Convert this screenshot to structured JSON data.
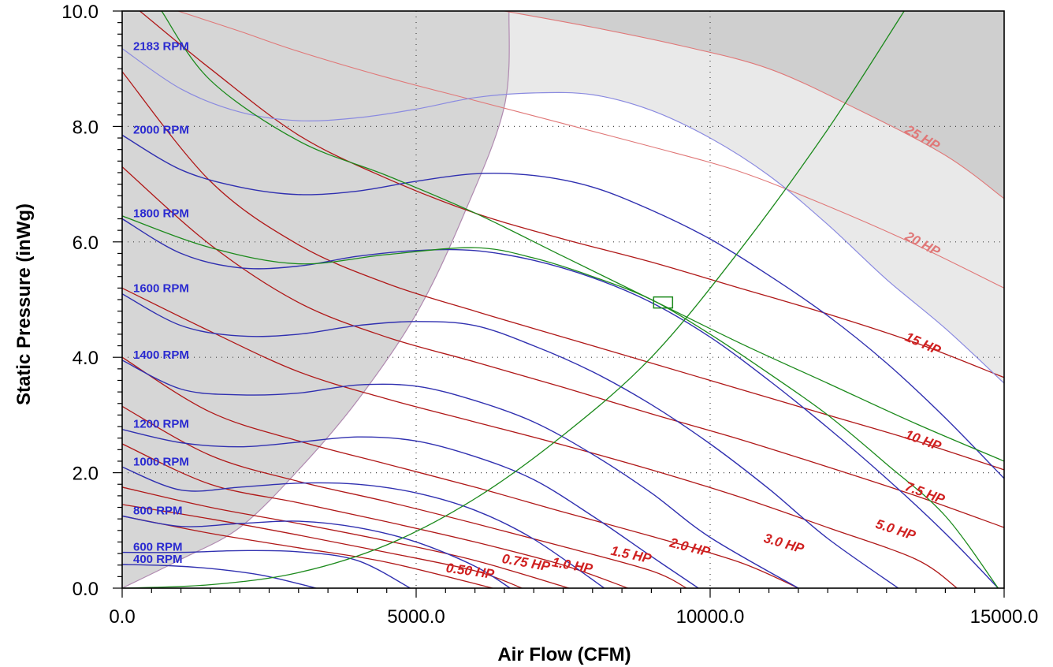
{
  "chart_data": {
    "type": "line",
    "title": "",
    "xlabel": "Air Flow (CFM)",
    "ylabel": "Static Pressure (inWg)",
    "xlim": [
      0,
      15000
    ],
    "ylim": [
      0,
      10
    ],
    "grid": true,
    "x_ticks": [
      {
        "value": 0,
        "label": "0.0"
      },
      {
        "value": 5000,
        "label": "5000.0"
      },
      {
        "value": 10000,
        "label": "10000.0"
      },
      {
        "value": 15000,
        "label": "15000.0"
      }
    ],
    "y_ticks": [
      {
        "value": 0,
        "label": "0.0"
      },
      {
        "value": 2,
        "label": "2.0"
      },
      {
        "value": 4,
        "label": "4.0"
      },
      {
        "value": 6,
        "label": "6.0"
      },
      {
        "value": 8,
        "label": "8.0"
      },
      {
        "value": 10,
        "label": "10.0"
      }
    ],
    "colors": {
      "rpm": "#3030b0",
      "rpm_max": "#8a8ae0",
      "hp": "#b01818",
      "hp_faint": "#e07878",
      "system": "#1c8a1c",
      "surge_region": "#d6d6d6",
      "over_limit_region": "#e9e9e9",
      "hp_limit_region": "#cfcfcf",
      "grid": "#444444"
    },
    "operating_point": {
      "x": 9200,
      "y": 4.95
    },
    "rpm_curves": [
      {
        "label": "400 RPM",
        "points": [
          [
            0,
            0.41
          ],
          [
            800,
            0.39
          ],
          [
            1600,
            0.33
          ],
          [
            2400,
            0.22
          ],
          [
            3300,
            0.0
          ]
        ]
      },
      {
        "label": "600 RPM",
        "points": [
          [
            0,
            0.62
          ],
          [
            1000,
            0.62
          ],
          [
            2000,
            0.65
          ],
          [
            3000,
            0.63
          ],
          [
            4000,
            0.48
          ],
          [
            4900,
            0.0
          ]
        ]
      },
      {
        "label": "800 RPM",
        "points": [
          [
            0,
            1.25
          ],
          [
            1000,
            1.07
          ],
          [
            2000,
            1.12
          ],
          [
            3000,
            1.16
          ],
          [
            4000,
            1.05
          ],
          [
            5000,
            0.8
          ],
          [
            6000,
            0.38
          ],
          [
            6600,
            0.0
          ]
        ]
      },
      {
        "label": "1000 RPM",
        "points": [
          [
            0,
            2.1
          ],
          [
            1000,
            1.7
          ],
          [
            2000,
            1.75
          ],
          [
            3000,
            1.82
          ],
          [
            4000,
            1.8
          ],
          [
            5000,
            1.65
          ],
          [
            6000,
            1.35
          ],
          [
            7000,
            0.85
          ],
          [
            8200,
            0.0
          ]
        ]
      },
      {
        "label": "1200 RPM",
        "points": [
          [
            0,
            2.75
          ],
          [
            1000,
            2.52
          ],
          [
            2000,
            2.45
          ],
          [
            3000,
            2.53
          ],
          [
            4000,
            2.62
          ],
          [
            5000,
            2.55
          ],
          [
            6000,
            2.28
          ],
          [
            7000,
            1.88
          ],
          [
            8000,
            1.25
          ],
          [
            9000,
            0.55
          ],
          [
            9800,
            0.0
          ]
        ]
      },
      {
        "label": "1400 RPM",
        "points": [
          [
            0,
            3.95
          ],
          [
            1000,
            3.45
          ],
          [
            2000,
            3.35
          ],
          [
            3000,
            3.38
          ],
          [
            4000,
            3.52
          ],
          [
            5000,
            3.5
          ],
          [
            6000,
            3.25
          ],
          [
            7000,
            2.88
          ],
          [
            8000,
            2.32
          ],
          [
            9000,
            1.65
          ],
          [
            10000,
            0.88
          ],
          [
            11500,
            0.0
          ]
        ]
      },
      {
        "label": "1600 RPM",
        "points": [
          [
            0,
            5.1
          ],
          [
            1000,
            4.55
          ],
          [
            2000,
            4.37
          ],
          [
            3000,
            4.4
          ],
          [
            4000,
            4.55
          ],
          [
            5000,
            4.62
          ],
          [
            6000,
            4.55
          ],
          [
            7000,
            4.2
          ],
          [
            8000,
            3.75
          ],
          [
            9000,
            3.18
          ],
          [
            10000,
            2.5
          ],
          [
            11000,
            1.72
          ],
          [
            12000,
            0.86
          ],
          [
            13200,
            0.0
          ]
        ]
      },
      {
        "label": "1800 RPM",
        "points": [
          [
            0,
            6.4
          ],
          [
            1000,
            5.8
          ],
          [
            2000,
            5.55
          ],
          [
            3000,
            5.58
          ],
          [
            4000,
            5.75
          ],
          [
            5000,
            5.85
          ],
          [
            6000,
            5.85
          ],
          [
            7000,
            5.68
          ],
          [
            8000,
            5.38
          ],
          [
            9000,
            4.95
          ],
          [
            10000,
            4.35
          ],
          [
            11000,
            3.6
          ],
          [
            12000,
            2.78
          ],
          [
            13000,
            1.9
          ],
          [
            14000,
            0.95
          ],
          [
            14900,
            0.0
          ]
        ]
      },
      {
        "label": "2000 RPM",
        "points": [
          [
            0,
            7.85
          ],
          [
            1000,
            7.25
          ],
          [
            2000,
            6.95
          ],
          [
            3000,
            6.82
          ],
          [
            4000,
            6.88
          ],
          [
            5000,
            7.05
          ],
          [
            6000,
            7.18
          ],
          [
            7000,
            7.15
          ],
          [
            8000,
            6.95
          ],
          [
            9000,
            6.55
          ],
          [
            10000,
            6.05
          ],
          [
            11000,
            5.42
          ],
          [
            12000,
            4.72
          ],
          [
            13000,
            3.9
          ],
          [
            14000,
            2.95
          ],
          [
            15000,
            1.9
          ]
        ]
      },
      {
        "label": "2183 RPM",
        "points": [
          [
            0,
            9.35
          ],
          [
            1000,
            8.65
          ],
          [
            2000,
            8.25
          ],
          [
            3000,
            8.1
          ],
          [
            4000,
            8.15
          ],
          [
            5000,
            8.3
          ],
          [
            6000,
            8.5
          ],
          [
            7000,
            8.58
          ],
          [
            8000,
            8.55
          ],
          [
            9000,
            8.28
          ],
          [
            10000,
            7.8
          ],
          [
            11000,
            7.15
          ],
          [
            12000,
            6.3
          ],
          [
            13000,
            5.35
          ],
          [
            14000,
            4.5
          ],
          [
            15000,
            3.55
          ]
        ],
        "max": true
      }
    ],
    "hp_curves": [
      {
        "label": "0.50 HP",
        "points": [
          [
            0,
            1.25
          ],
          [
            1500,
            0.95
          ],
          [
            3000,
            0.7
          ],
          [
            4500,
            0.45
          ],
          [
            6300,
            0.0
          ]
        ]
      },
      {
        "label": "0.75 HP",
        "points": [
          [
            0,
            1.45
          ],
          [
            1500,
            1.2
          ],
          [
            3000,
            0.92
          ],
          [
            4500,
            0.62
          ],
          [
            6000,
            0.3
          ],
          [
            6800,
            0.0
          ]
        ]
      },
      {
        "label": "1.0 HP",
        "points": [
          [
            0,
            1.75
          ],
          [
            1500,
            1.4
          ],
          [
            3000,
            1.12
          ],
          [
            4500,
            0.82
          ],
          [
            6000,
            0.48
          ],
          [
            7600,
            0.0
          ]
        ]
      },
      {
        "label": "1.5 HP",
        "points": [
          [
            0,
            2.5
          ],
          [
            1500,
            1.8
          ],
          [
            3000,
            1.48
          ],
          [
            4500,
            1.15
          ],
          [
            6000,
            0.8
          ],
          [
            7500,
            0.4
          ],
          [
            8600,
            0.0
          ]
        ]
      },
      {
        "label": "2.0 HP",
        "points": [
          [
            0,
            3.15
          ],
          [
            1500,
            2.3
          ],
          [
            3000,
            1.85
          ],
          [
            4500,
            1.5
          ],
          [
            6000,
            1.12
          ],
          [
            7500,
            0.72
          ],
          [
            9000,
            0.3
          ],
          [
            9600,
            0.0
          ]
        ]
      },
      {
        "label": "3.0 HP",
        "points": [
          [
            0,
            4.0
          ],
          [
            1500,
            3.05
          ],
          [
            3000,
            2.55
          ],
          [
            4500,
            2.15
          ],
          [
            6000,
            1.75
          ],
          [
            7500,
            1.32
          ],
          [
            9000,
            0.9
          ],
          [
            10500,
            0.45
          ],
          [
            11500,
            0.0
          ]
        ]
      },
      {
        "label": "5.0 HP",
        "points": [
          [
            0,
            5.2
          ],
          [
            1500,
            4.45
          ],
          [
            3000,
            3.75
          ],
          [
            4500,
            3.28
          ],
          [
            6000,
            2.88
          ],
          [
            7500,
            2.48
          ],
          [
            9000,
            2.05
          ],
          [
            10500,
            1.58
          ],
          [
            12000,
            1.05
          ],
          [
            13500,
            0.5
          ],
          [
            14200,
            0.0
          ]
        ]
      },
      {
        "label": "7.5 HP",
        "points": [
          [
            0,
            7.3
          ],
          [
            1500,
            5.95
          ],
          [
            3000,
            4.95
          ],
          [
            4500,
            4.35
          ],
          [
            6000,
            3.92
          ],
          [
            7500,
            3.48
          ],
          [
            9000,
            3.02
          ],
          [
            10500,
            2.58
          ],
          [
            12000,
            2.1
          ],
          [
            13500,
            1.6
          ],
          [
            15000,
            1.05
          ]
        ]
      },
      {
        "label": "10 HP",
        "points": [
          [
            0,
            8.95
          ],
          [
            1500,
            7.05
          ],
          [
            3000,
            5.95
          ],
          [
            4500,
            5.28
          ],
          [
            6000,
            4.8
          ],
          [
            7500,
            4.35
          ],
          [
            9000,
            3.9
          ],
          [
            10500,
            3.45
          ],
          [
            12000,
            3.0
          ],
          [
            13500,
            2.55
          ],
          [
            15000,
            2.05
          ]
        ]
      },
      {
        "label": "15 HP",
        "points": [
          [
            300,
            10.0
          ],
          [
            1500,
            9.0
          ],
          [
            3000,
            7.85
          ],
          [
            4500,
            7.1
          ],
          [
            6000,
            6.5
          ],
          [
            7500,
            6.05
          ],
          [
            9000,
            5.65
          ],
          [
            10500,
            5.2
          ],
          [
            12000,
            4.75
          ],
          [
            13500,
            4.25
          ],
          [
            15000,
            3.65
          ]
        ]
      },
      {
        "label": "20 HP",
        "points": [
          [
            950,
            10.0
          ],
          [
            2000,
            9.65
          ],
          [
            3000,
            9.3
          ],
          [
            4500,
            8.85
          ],
          [
            6000,
            8.45
          ],
          [
            7500,
            8.05
          ],
          [
            9000,
            7.65
          ],
          [
            10500,
            7.22
          ],
          [
            12000,
            6.62
          ],
          [
            13500,
            5.95
          ],
          [
            15000,
            5.2
          ]
        ],
        "faint": true
      },
      {
        "label": "25 HP",
        "points": [
          [
            6500,
            10.0
          ],
          [
            8000,
            9.72
          ],
          [
            9500,
            9.4
          ],
          [
            11000,
            9.0
          ],
          [
            12500,
            8.3
          ],
          [
            14000,
            7.5
          ],
          [
            15000,
            6.75
          ]
        ],
        "faint": true
      }
    ],
    "hp_label_positions": [
      {
        "label": "0.50 HP",
        "x": 5500,
        "y": 0.28,
        "angle": 8
      },
      {
        "label": "0.75 HP",
        "x": 6450,
        "y": 0.44,
        "angle": 10
      },
      {
        "label": "1.0 HP",
        "x": 7300,
        "y": 0.38,
        "angle": 10
      },
      {
        "label": "1.5 HP",
        "x": 8300,
        "y": 0.58,
        "angle": 12
      },
      {
        "label": "2.0 HP",
        "x": 9300,
        "y": 0.72,
        "angle": 14
      },
      {
        "label": "3.0 HP",
        "x": 10900,
        "y": 0.8,
        "angle": 16
      },
      {
        "label": "5.0 HP",
        "x": 12800,
        "y": 1.05,
        "angle": 18
      },
      {
        "label": "7.5 HP",
        "x": 13300,
        "y": 1.7,
        "angle": 20
      },
      {
        "label": "10 HP",
        "x": 13300,
        "y": 2.6,
        "angle": 20
      },
      {
        "label": "15 HP",
        "x": 13300,
        "y": 4.3,
        "angle": 24
      },
      {
        "label": "20 HP",
        "x": 13300,
        "y": 6.05,
        "angle": 28
      },
      {
        "label": "25 HP",
        "x": 13300,
        "y": 7.9,
        "angle": 30
      }
    ],
    "system_curves": [
      {
        "points": [
          [
            0,
            0.0
          ],
          [
            1500,
            0.06
          ],
          [
            3000,
            0.27
          ],
          [
            4500,
            0.75
          ],
          [
            6000,
            1.55
          ],
          [
            7500,
            2.65
          ],
          [
            9000,
            4.0
          ],
          [
            10500,
            5.85
          ],
          [
            12000,
            7.95
          ],
          [
            13300,
            10.0
          ]
        ]
      },
      {
        "points": [
          [
            0,
            6.45
          ],
          [
            1500,
            5.9
          ],
          [
            3000,
            5.62
          ],
          [
            4500,
            5.78
          ],
          [
            6000,
            5.9
          ],
          [
            7000,
            5.72
          ],
          [
            8000,
            5.4
          ],
          [
            9000,
            5.0
          ],
          [
            10000,
            4.4
          ],
          [
            11000,
            3.72
          ],
          [
            12000,
            3.0
          ],
          [
            13000,
            2.15
          ],
          [
            14000,
            1.25
          ],
          [
            14900,
            0.0
          ]
        ]
      },
      {
        "points": [
          [
            670,
            10.0
          ],
          [
            1500,
            8.8
          ],
          [
            3000,
            7.75
          ],
          [
            4500,
            7.15
          ],
          [
            6000,
            6.5
          ],
          [
            7500,
            5.75
          ],
          [
            9000,
            5.0
          ],
          [
            10500,
            4.25
          ],
          [
            12000,
            3.55
          ],
          [
            13500,
            2.85
          ],
          [
            15000,
            2.2
          ]
        ]
      }
    ],
    "surge_boundary": [
      [
        0,
        0.0
      ],
      [
        1000,
        0.5
      ],
      [
        2000,
        1.05
      ],
      [
        3000,
        2.05
      ],
      [
        4000,
        3.25
      ],
      [
        5000,
        4.75
      ],
      [
        5800,
        6.45
      ],
      [
        6500,
        8.35
      ],
      [
        6580,
        10.0
      ]
    ]
  }
}
